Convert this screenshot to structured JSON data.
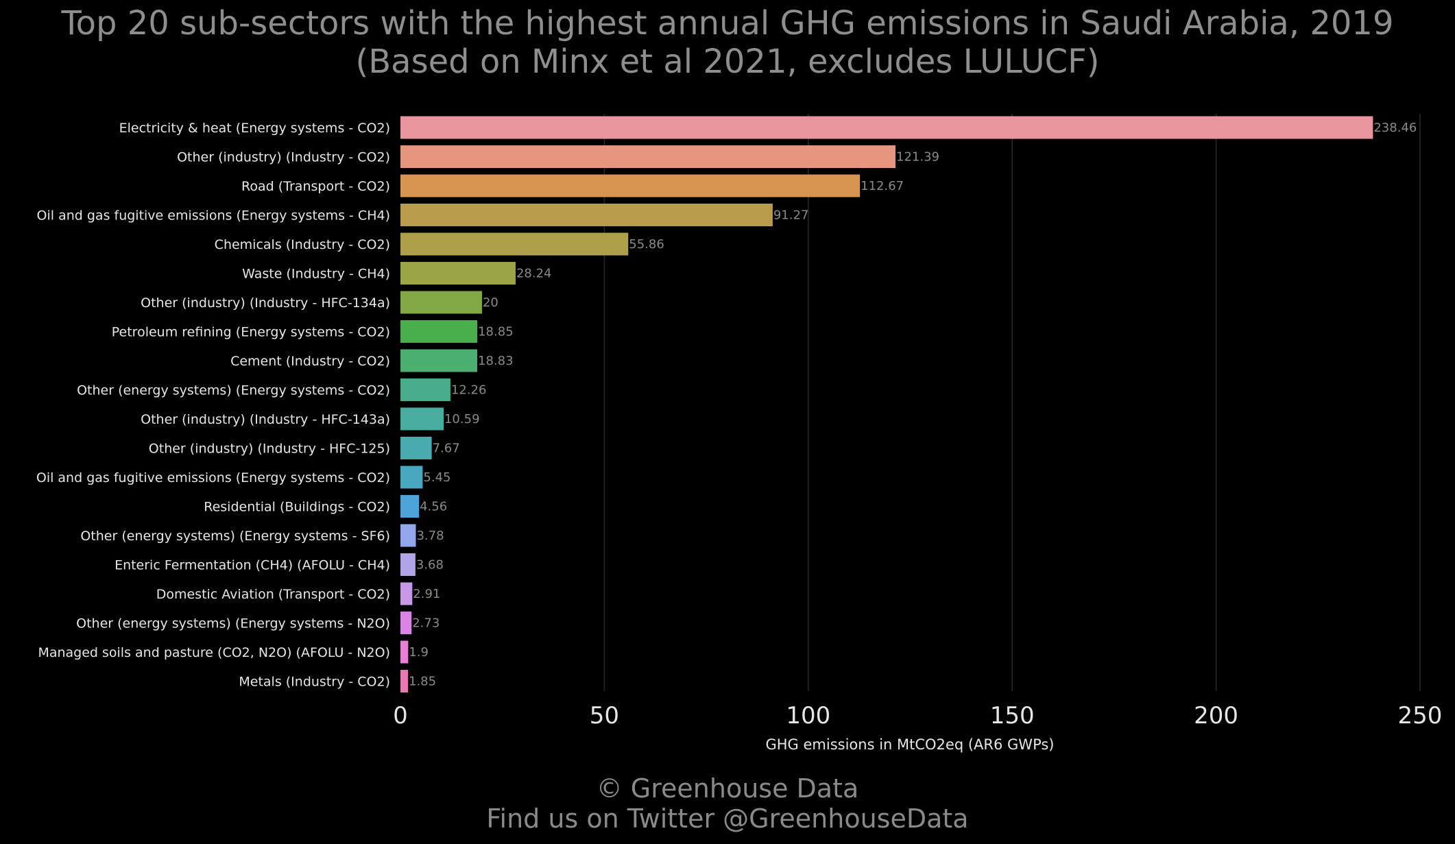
{
  "chart_data": {
    "type": "bar",
    "orientation": "horizontal",
    "title": "Top 20 sub-sectors with the highest annual GHG emissions in Saudi Arabia, 2019",
    "subtitle": "(Based on Minx et al 2021, excludes LULUCF)",
    "xlabel": "GHG emissions in MtCO2eq (AR6 GWPs)",
    "ylabel": "",
    "xlim": [
      0,
      250
    ],
    "x_ticks": [
      0,
      50,
      100,
      150,
      200,
      250
    ],
    "grid": "vertical",
    "legend": "none",
    "categories": [
      "Electricity & heat (Energy systems - CO2)",
      "Other (industry) (Industry - CO2)",
      "Road (Transport - CO2)",
      "Oil and gas fugitive emissions (Energy systems - CH4)",
      "Chemicals (Industry - CO2)",
      "Waste (Industry - CH4)",
      "Other (industry) (Industry - HFC-134a)",
      "Petroleum refining (Energy systems - CO2)",
      "Cement (Industry - CO2)",
      "Other (energy systems) (Energy systems - CO2)",
      "Other (industry) (Industry - HFC-143a)",
      "Other (industry) (Industry - HFC-125)",
      "Oil and gas fugitive emissions (Energy systems - CO2)",
      "Residential (Buildings - CO2)",
      "Other (energy systems) (Energy systems - SF6)",
      "Enteric Fermentation (CH4) (AFOLU - CH4)",
      "Domestic Aviation (Transport - CO2)",
      "Other (energy systems) (Energy systems - N2O)",
      "Managed soils and pasture (CO2, N2O) (AFOLU - N2O)",
      "Metals (Industry - CO2)"
    ],
    "values": [
      238.46,
      121.39,
      112.67,
      91.27,
      55.86,
      28.24,
      20,
      18.85,
      18.83,
      12.26,
      10.59,
      7.67,
      5.45,
      4.56,
      3.78,
      3.68,
      2.91,
      2.73,
      1.9,
      1.85
    ],
    "value_labels": [
      "238.46",
      "121.39",
      "112.67",
      "91.27",
      "55.86",
      "28.24",
      "20",
      "18.85",
      "18.83",
      "12.26",
      "10.59",
      "7.67",
      "5.45",
      "4.56",
      "3.78",
      "3.68",
      "2.91",
      "2.73",
      "1.9",
      "1.85"
    ],
    "colors": [
      "#e8959e",
      "#e6957f",
      "#d59550",
      "#b99b4c",
      "#ae9f4b",
      "#9ca545",
      "#82a845",
      "#4aae4b",
      "#4baf72",
      "#47ad8d",
      "#48ad9e",
      "#49aab0",
      "#4aa7c0",
      "#4ea3d8",
      "#92a7eb",
      "#b3a4ea",
      "#c698e6",
      "#d984e5",
      "#e67fd6",
      "#e679b1"
    ]
  },
  "footer": {
    "copyright": "© Greenhouse Data",
    "twitter": "Find us on Twitter @GreenhouseData"
  }
}
